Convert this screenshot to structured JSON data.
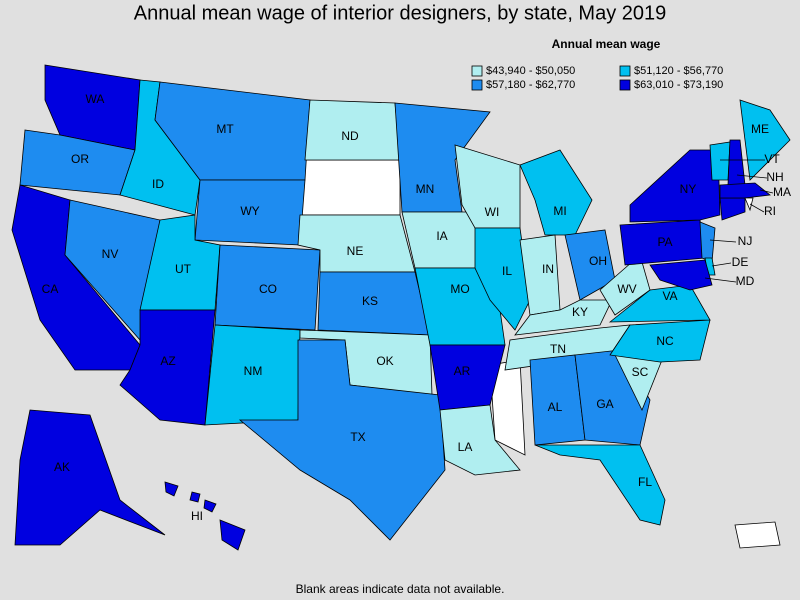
{
  "title": "Annual mean wage of interior designers, by state, May 2019",
  "legend": {
    "title": "Annual mean wage",
    "items": [
      {
        "label": "$43,940 - $50,050",
        "color": "#b0eef0"
      },
      {
        "label": "$51,120 - $56,770",
        "color": "#00c0f0"
      },
      {
        "label": "$57,180 - $62,770",
        "color": "#1e8cf0"
      },
      {
        "label": "$63,010 - $73,190",
        "color": "#0000e0"
      }
    ]
  },
  "states": [
    {
      "label": "WA",
      "color": "#0000e0"
    },
    {
      "label": "OR",
      "color": "#1e8cf0"
    },
    {
      "label": "CA",
      "color": "#0000e0"
    },
    {
      "label": "NV",
      "color": "#1e8cf0"
    },
    {
      "label": "ID",
      "color": "#00c0f0"
    },
    {
      "label": "MT",
      "color": "#1e8cf0"
    },
    {
      "label": "WY",
      "color": "#1e8cf0"
    },
    {
      "label": "UT",
      "color": "#00c0f0"
    },
    {
      "label": "AZ",
      "color": "#0000e0"
    },
    {
      "label": "CO",
      "color": "#1e8cf0"
    },
    {
      "label": "NM",
      "color": "#00c0f0"
    },
    {
      "label": "ND",
      "color": "#b0eef0"
    },
    {
      "label": "NE",
      "color": "#b0eef0"
    },
    {
      "label": "KS",
      "color": "#1e8cf0"
    },
    {
      "label": "OK",
      "color": "#b0eef0"
    },
    {
      "label": "TX",
      "color": "#1e8cf0"
    },
    {
      "label": "MN",
      "color": "#1e8cf0"
    },
    {
      "label": "IA",
      "color": "#b0eef0"
    },
    {
      "label": "MO",
      "color": "#00c0f0"
    },
    {
      "label": "AR",
      "color": "#0000e0"
    },
    {
      "label": "LA",
      "color": "#b0eef0"
    },
    {
      "label": "WI",
      "color": "#b0eef0"
    },
    {
      "label": "IL",
      "color": "#00c0f0"
    },
    {
      "label": "MI",
      "color": "#00c0f0"
    },
    {
      "label": "IN",
      "color": "#b0eef0"
    },
    {
      "label": "OH",
      "color": "#1e8cf0"
    },
    {
      "label": "KY",
      "color": "#b0eef0"
    },
    {
      "label": "TN",
      "color": "#b0eef0"
    },
    {
      "label": "AL",
      "color": "#1e8cf0"
    },
    {
      "label": "GA",
      "color": "#1e8cf0"
    },
    {
      "label": "FL",
      "color": "#00c0f0"
    },
    {
      "label": "SC",
      "color": "#b0eef0"
    },
    {
      "label": "NC",
      "color": "#00c0f0"
    },
    {
      "label": "VA",
      "color": "#00c0f0"
    },
    {
      "label": "WV",
      "color": "#b0eef0"
    },
    {
      "label": "PA",
      "color": "#0000e0"
    },
    {
      "label": "NY",
      "color": "#0000e0"
    },
    {
      "label": "VT",
      "color": "#00c0f0"
    },
    {
      "label": "NH",
      "color": "#0000e0"
    },
    {
      "label": "ME",
      "color": "#00c0f0"
    },
    {
      "label": "MA",
      "color": "#0000e0"
    },
    {
      "label": "RI",
      "color": "#ffffff"
    },
    {
      "label": "NJ",
      "color": "#1e8cf0"
    },
    {
      "label": "DE",
      "color": "#00c0f0"
    },
    {
      "label": "MD",
      "color": "#0000e0"
    },
    {
      "label": "AK",
      "color": "#0000e0"
    },
    {
      "label": "HI",
      "color": "#0000e0"
    }
  ],
  "note": "Blank areas indicate data not available."
}
